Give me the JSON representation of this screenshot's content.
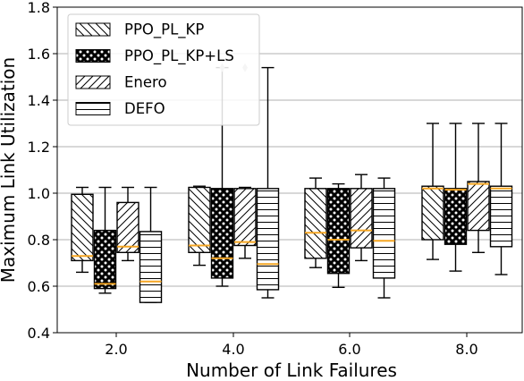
{
  "chart_data": {
    "type": "boxplot",
    "xlabel": "Number of Link Failures",
    "ylabel": "Maximum Link Utilization",
    "categories": [
      "2.0",
      "4.0",
      "6.0",
      "8.0"
    ],
    "ylim": [
      0.4,
      1.8
    ],
    "yticks": [
      "0.4",
      "0.6",
      "0.8",
      "1.0",
      "1.2",
      "1.4",
      "1.6",
      "1.8"
    ],
    "grid": "horizontal",
    "legend_position": "top-left",
    "median_color": "#f5a623",
    "series": [
      {
        "name": "PPO_PL_KP",
        "pattern": "backslash",
        "boxes": [
          {
            "whislo": 0.66,
            "q1": 0.71,
            "med": 0.73,
            "q3": 0.995,
            "whishi": 1.025,
            "fliers": []
          },
          {
            "whislo": 0.69,
            "q1": 0.745,
            "med": 0.775,
            "q3": 1.025,
            "whishi": 1.03,
            "fliers": []
          },
          {
            "whislo": 0.68,
            "q1": 0.72,
            "med": 0.83,
            "q3": 1.02,
            "whishi": 1.065,
            "fliers": []
          },
          {
            "whislo": 0.715,
            "q1": 0.8,
            "med": 1.02,
            "q3": 1.03,
            "whishi": 1.3,
            "fliers": []
          }
        ]
      },
      {
        "name": "PPO_PL_KP+LS",
        "pattern": "circles",
        "boxes": [
          {
            "whislo": 0.57,
            "q1": 0.59,
            "med": 0.61,
            "q3": 0.84,
            "whishi": 1.025,
            "fliers": []
          },
          {
            "whislo": 0.6,
            "q1": 0.635,
            "med": 0.72,
            "q3": 1.02,
            "whishi": 1.54,
            "fliers": [
              1.54
            ]
          },
          {
            "whislo": 0.595,
            "q1": 0.655,
            "med": 0.8,
            "q3": 1.02,
            "whishi": 1.04,
            "fliers": []
          },
          {
            "whislo": 0.665,
            "q1": 0.78,
            "med": 1.015,
            "q3": 1.02,
            "whishi": 1.3,
            "fliers": []
          }
        ]
      },
      {
        "name": "Enero",
        "pattern": "slash",
        "boxes": [
          {
            "whislo": 0.71,
            "q1": 0.745,
            "med": 0.77,
            "q3": 0.96,
            "whishi": 1.025,
            "fliers": []
          },
          {
            "whislo": 0.72,
            "q1": 0.775,
            "med": 0.79,
            "q3": 1.02,
            "whishi": 1.025,
            "fliers": [
              1.54
            ]
          },
          {
            "whislo": 0.71,
            "q1": 0.765,
            "med": 0.84,
            "q3": 1.02,
            "whishi": 1.08,
            "fliers": []
          },
          {
            "whislo": 0.745,
            "q1": 0.84,
            "med": 1.04,
            "q3": 1.05,
            "whishi": 1.3,
            "fliers": []
          }
        ]
      },
      {
        "name": "DEFO",
        "pattern": "hlines",
        "boxes": [
          {
            "whislo": 0.53,
            "q1": 0.53,
            "med": 0.62,
            "q3": 0.835,
            "whishi": 1.025,
            "fliers": []
          },
          {
            "whislo": 0.55,
            "q1": 0.585,
            "med": 0.695,
            "q3": 1.02,
            "whishi": 1.54,
            "fliers": []
          },
          {
            "whislo": 0.55,
            "q1": 0.635,
            "med": 0.795,
            "q3": 1.02,
            "whishi": 1.065,
            "fliers": []
          },
          {
            "whislo": 0.65,
            "q1": 0.77,
            "med": 1.02,
            "q3": 1.03,
            "whishi": 1.3,
            "fliers": []
          }
        ]
      }
    ]
  }
}
